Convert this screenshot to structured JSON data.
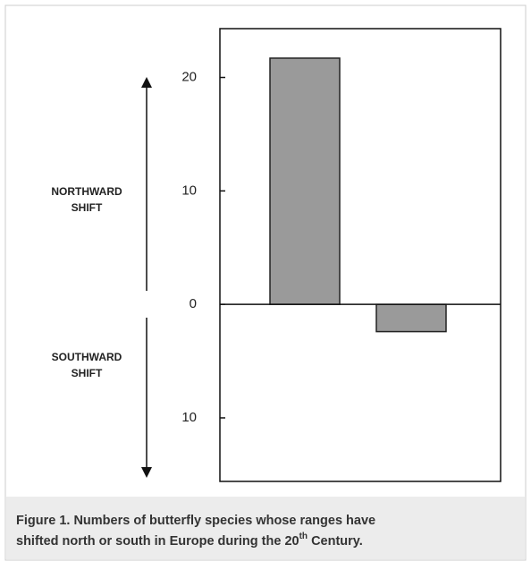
{
  "chart_data": {
    "type": "bar",
    "categories": [
      null,
      null
    ],
    "values": [
      21.7,
      -2.4
    ],
    "color": "#9a9a9a",
    "ylim": [
      -15.6,
      24.3
    ],
    "yticks": [
      20,
      10,
      0,
      {
        "value": -10,
        "label": "10"
      }
    ],
    "annotations": {
      "north_line1": "NORTHWARD",
      "north_line2": "SHIFT",
      "south_line1": "SOUTHWARD",
      "south_line2": "SHIFT"
    },
    "caption": {
      "line1": "Figure 1. Numbers of butterfly species whose ranges have",
      "line2_before": "shifted north or south in Europe during the 20",
      "superscript": "th",
      "line2_after": " Century."
    }
  }
}
